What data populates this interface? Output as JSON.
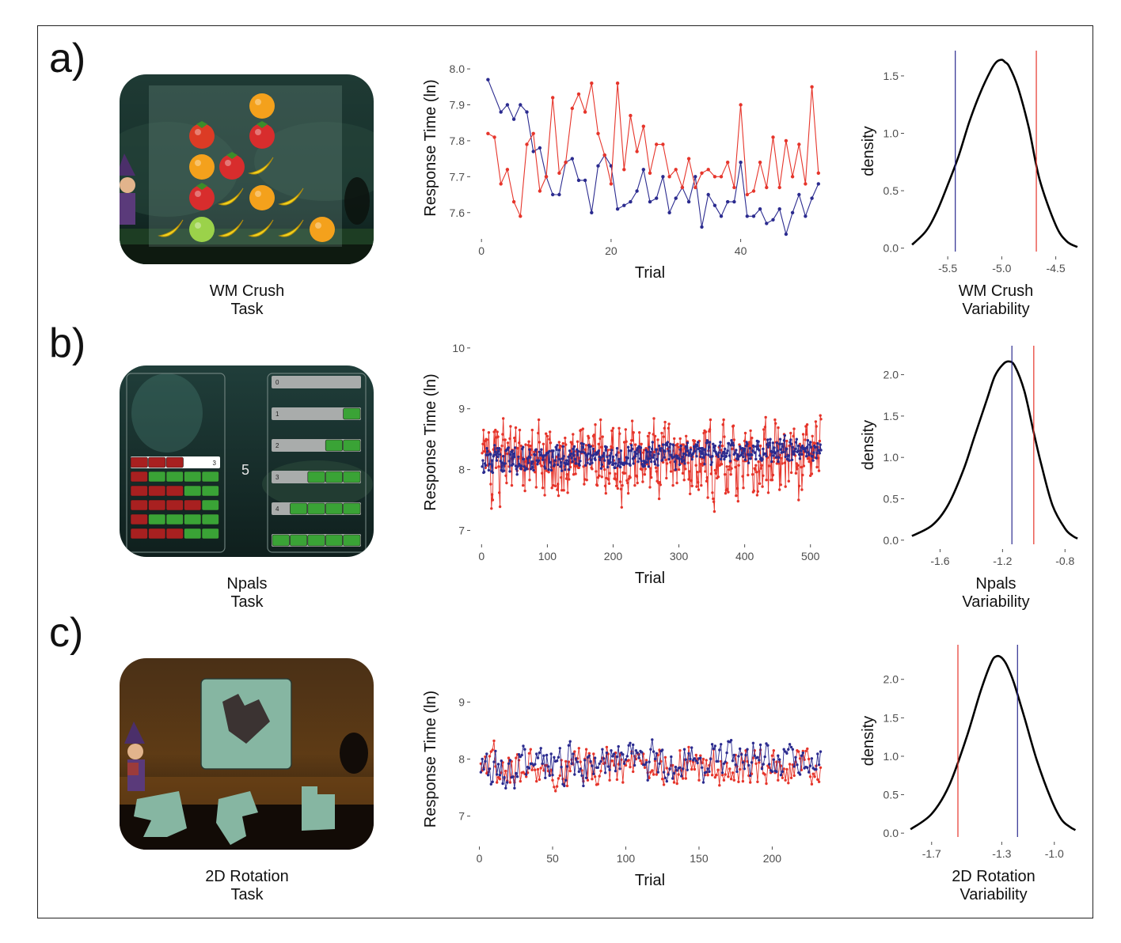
{
  "panels": [
    {
      "letter": "a)",
      "task_name": "WM Crush",
      "task_word": "Task",
      "var_label": "Variability",
      "screenshot": {
        "content": "fruit-grid-game",
        "fruit": [
          "orange",
          "tomato",
          "strawberry",
          "orange",
          "strawberry",
          "banana",
          "strawberry",
          "banana",
          "orange",
          "banana",
          "banana",
          "apple",
          "banana",
          "banana",
          "banana",
          "orange"
        ]
      }
    },
    {
      "letter": "b)",
      "task_name": "Npals",
      "task_word": "Task",
      "var_label": "Variability",
      "screenshot": {
        "content": "block-bars-game",
        "center_number": "5",
        "left_rows": [
          {
            "red": 3,
            "green": 0,
            "label": "3",
            "selected": true
          },
          {
            "red": 1,
            "green": 4
          },
          {
            "red": 3,
            "green": 2
          },
          {
            "red": 4,
            "green": 1
          },
          {
            "red": 1,
            "green": 4
          },
          {
            "red": 3,
            "green": 2
          }
        ],
        "right_rows": [
          {
            "label": "0",
            "green": 0
          },
          {
            "label": "1",
            "green": 1
          },
          {
            "label": "2",
            "green": 2
          },
          {
            "label": "3",
            "green": 3
          },
          {
            "label": "4",
            "green": 4
          },
          {
            "label": "",
            "green": 5
          }
        ]
      }
    },
    {
      "letter": "c)",
      "task_name": "2D Rotation",
      "task_word": "Task",
      "var_label": "Variability",
      "screenshot": {
        "content": "rotation-shapes-game"
      }
    }
  ],
  "chart_data": [
    {
      "type": "line",
      "panel": "a",
      "xlabel": "Trial",
      "ylabel": "Response Time (ln)",
      "xlim": [
        -1,
        53
      ],
      "ylim": [
        7.54,
        8.02
      ],
      "xticks": [
        0,
        20,
        40
      ],
      "yticks": [
        7.6,
        7.7,
        7.8,
        7.9,
        8.0
      ],
      "grid": false,
      "series_colors": [
        "#2b2b8f",
        "#e6352b"
      ],
      "series": [
        {
          "x": [
            1,
            3,
            4,
            5,
            6,
            7,
            8,
            9,
            10,
            11,
            12,
            13,
            14,
            15,
            16,
            17,
            18,
            19,
            20,
            21,
            22,
            23,
            24,
            25,
            26,
            27,
            28,
            29,
            30,
            31,
            32,
            33,
            34,
            35,
            36,
            37,
            38,
            39,
            40,
            41,
            42,
            43,
            44,
            45,
            46,
            47,
            48,
            49,
            50,
            51,
            52
          ],
          "values": [
            7.97,
            7.88,
            7.9,
            7.86,
            7.9,
            7.88,
            7.77,
            7.78,
            7.7,
            7.65,
            7.65,
            7.74,
            7.75,
            7.69,
            7.69,
            7.6,
            7.73,
            7.76,
            7.73,
            7.61,
            7.62,
            7.63,
            7.66,
            7.72,
            7.63,
            7.64,
            7.7,
            7.6,
            7.64,
            7.67,
            7.63,
            7.7,
            7.56,
            7.65,
            7.62,
            7.59,
            7.63,
            7.63,
            7.74,
            7.59,
            7.59,
            7.61,
            7.57,
            7.58,
            7.61,
            7.54,
            7.6,
            7.65,
            7.59,
            7.64,
            7.68
          ]
        },
        {
          "x": [
            1,
            2,
            3,
            4,
            5,
            6,
            7,
            8,
            9,
            10,
            11,
            12,
            13,
            14,
            15,
            16,
            17,
            18,
            19,
            20,
            21,
            22,
            23,
            24,
            25,
            26,
            27,
            28,
            29,
            30,
            31,
            32,
            33,
            34,
            35,
            36,
            37,
            38,
            39,
            40,
            41,
            42,
            43,
            44,
            45,
            46,
            47,
            48,
            49,
            50,
            51,
            52
          ],
          "values": [
            7.82,
            7.81,
            7.68,
            7.72,
            7.63,
            7.59,
            7.79,
            7.82,
            7.66,
            7.7,
            7.92,
            7.71,
            7.74,
            7.89,
            7.93,
            7.88,
            7.96,
            7.82,
            7.76,
            7.68,
            7.96,
            7.72,
            7.87,
            7.77,
            7.84,
            7.71,
            7.79,
            7.79,
            7.7,
            7.72,
            7.67,
            7.75,
            7.67,
            7.71,
            7.72,
            7.7,
            7.7,
            7.74,
            7.67,
            7.9,
            7.65,
            7.66,
            7.74,
            7.67,
            7.81,
            7.67,
            7.8,
            7.7,
            7.79,
            7.68,
            7.95,
            7.71
          ]
        }
      ]
    },
    {
      "type": "line",
      "panel": "b",
      "xlabel": "Trial",
      "ylabel": "Response Time (ln)",
      "xlim": [
        -10,
        522
      ],
      "ylim": [
        6.85,
        10.05
      ],
      "xticks": [
        0,
        100,
        200,
        300,
        400,
        500
      ],
      "yticks": [
        7,
        8,
        9,
        10
      ],
      "grid": false,
      "series_colors": [
        "#2b2b8f",
        "#e6352b"
      ],
      "series_gen": {
        "n": 516,
        "base": 8.15,
        "spread": [
          0.35,
          1.05
        ]
      }
    },
    {
      "type": "line",
      "panel": "c",
      "xlabel": "Trial",
      "ylabel": "Response Time (ln)",
      "xlim": [
        -3,
        236
      ],
      "ylim": [
        6.55,
        9.45
      ],
      "xticks": [
        0,
        50,
        100,
        150,
        200
      ],
      "yticks": [
        7,
        8,
        9
      ],
      "grid": false,
      "series_colors": [
        "#2b2b8f",
        "#e6352b"
      ],
      "series_gen": {
        "n": 233,
        "base": 7.85,
        "spread": [
          0.55,
          0.6
        ]
      }
    },
    {
      "type": "area",
      "panel": "a",
      "xlabel": "WM Crush Variability",
      "ylabel": "density",
      "xlim": [
        -5.86,
        -4.27
      ],
      "ylim": [
        -0.03,
        1.72
      ],
      "xticks": [
        -5.5,
        -5.0,
        -4.5
      ],
      "xtick_labels": [
        "-5.5",
        "-5.0",
        "-4.5"
      ],
      "yticks": [
        0,
        0.5,
        1.0,
        1.5
      ],
      "ytick_labels": [
        "0.0",
        "0.5",
        "1.0",
        "1.5"
      ],
      "curve": {
        "x": [
          -5.83,
          -5.7,
          -5.6,
          -5.5,
          -5.4,
          -5.3,
          -5.2,
          -5.1,
          -5.05,
          -5.0,
          -4.97,
          -4.93,
          -4.85,
          -4.75,
          -4.65,
          -4.5,
          -4.4,
          -4.3
        ],
        "y": [
          0.03,
          0.15,
          0.32,
          0.55,
          0.8,
          1.1,
          1.35,
          1.55,
          1.62,
          1.64,
          1.62,
          1.58,
          1.4,
          1.05,
          0.6,
          0.2,
          0.06,
          0.01
        ]
      },
      "vlines": [
        {
          "x": -5.43,
          "color": "#2b2b8f"
        },
        {
          "x": -4.68,
          "color": "#e6352b"
        }
      ]
    },
    {
      "type": "area",
      "panel": "b",
      "xlabel": "Npals Variability",
      "ylabel": "density",
      "xlim": [
        -1.8,
        -0.7
      ],
      "ylim": [
        -0.05,
        2.35
      ],
      "xticks": [
        -1.6,
        -1.2,
        -0.8
      ],
      "xtick_labels": [
        "-1.6",
        "-1.2",
        "-0.8"
      ],
      "yticks": [
        0,
        0.5,
        1.0,
        1.5,
        2.0
      ],
      "ytick_labels": [
        "0.0",
        "0.5",
        "1.0",
        "1.5",
        "2.0"
      ],
      "curve": {
        "x": [
          -1.78,
          -1.65,
          -1.55,
          -1.45,
          -1.38,
          -1.3,
          -1.25,
          -1.2,
          -1.16,
          -1.12,
          -1.06,
          -1.0,
          -0.95,
          -0.88,
          -0.8,
          -0.75,
          -0.72
        ],
        "y": [
          0.05,
          0.18,
          0.42,
          0.85,
          1.25,
          1.7,
          1.98,
          2.12,
          2.16,
          2.1,
          1.8,
          1.3,
          0.9,
          0.42,
          0.14,
          0.05,
          0.02
        ]
      },
      "vlines": [
        {
          "x": -1.14,
          "color": "#2b2b8f"
        },
        {
          "x": -1.0,
          "color": "#e6352b"
        }
      ]
    },
    {
      "type": "area",
      "panel": "c",
      "xlabel": "2D Rotation Variability",
      "ylabel": "density",
      "xlim": [
        -1.83,
        -0.85
      ],
      "ylim": [
        -0.05,
        2.45
      ],
      "xticks": [
        -1.7,
        -1.3,
        -1.0
      ],
      "xtick_labels": [
        "-1.7",
        "-1.3",
        "-1.0"
      ],
      "yticks": [
        0,
        0.5,
        1.0,
        1.5,
        2.0
      ],
      "ytick_labels": [
        "0.0",
        "0.5",
        "1.0",
        "1.5",
        "2.0"
      ],
      "curve": {
        "x": [
          -1.82,
          -1.7,
          -1.6,
          -1.5,
          -1.42,
          -1.36,
          -1.33,
          -1.3,
          -1.27,
          -1.23,
          -1.17,
          -1.1,
          -1.02,
          -0.96,
          -0.91,
          -0.88
        ],
        "y": [
          0.05,
          0.25,
          0.62,
          1.25,
          1.85,
          2.22,
          2.3,
          2.28,
          2.18,
          1.95,
          1.5,
          0.95,
          0.45,
          0.18,
          0.08,
          0.04
        ]
      },
      "vlines": [
        {
          "x": -1.55,
          "color": "#e6352b"
        },
        {
          "x": -1.21,
          "color": "#2b2b8f"
        }
      ]
    }
  ]
}
